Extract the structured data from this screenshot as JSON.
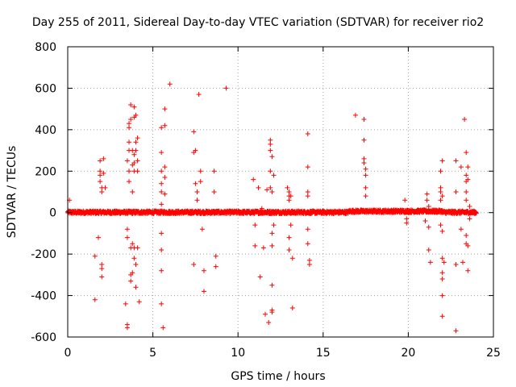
{
  "chart_data": {
    "type": "scatter",
    "title": "Day 255 of 2011, Sidereal Day-to-day VTEC variation (SDTVAR) for receiver rio2",
    "xlabel": "GPS time / hours",
    "ylabel": "SDTVAR / TECUs",
    "xlim": [
      0,
      25
    ],
    "ylim": [
      -600,
      800
    ],
    "xticks": [
      0,
      5,
      10,
      15,
      20,
      25
    ],
    "yticks": [
      -600,
      -400,
      -200,
      0,
      200,
      400,
      600,
      800
    ],
    "grid": true,
    "marker": "+",
    "color": "#ff0000",
    "baseline_band": {
      "description": "dense near-zero points across the full day",
      "x_range": [
        0,
        24
      ],
      "y_range": [
        -10,
        12
      ]
    },
    "points": [
      [
        0.1,
        60
      ],
      [
        1.6,
        -420
      ],
      [
        1.6,
        -210
      ],
      [
        1.8,
        -120
      ],
      [
        1.9,
        250
      ],
      [
        1.9,
        200
      ],
      [
        1.9,
        180
      ],
      [
        1.9,
        150
      ],
      [
        2.0,
        120
      ],
      [
        2.0,
        100
      ],
      [
        2.0,
        -250
      ],
      [
        2.0,
        -270
      ],
      [
        2.0,
        -310
      ],
      [
        2.1,
        260
      ],
      [
        2.1,
        190
      ],
      [
        2.2,
        120
      ],
      [
        3.4,
        -440
      ],
      [
        3.5,
        -540
      ],
      [
        3.5,
        -555
      ],
      [
        3.5,
        250
      ],
      [
        3.5,
        -80
      ],
      [
        3.5,
        -120
      ],
      [
        3.6,
        410
      ],
      [
        3.6,
        430
      ],
      [
        3.6,
        340
      ],
      [
        3.6,
        300
      ],
      [
        3.6,
        200
      ],
      [
        3.6,
        150
      ],
      [
        3.7,
        520
      ],
      [
        3.7,
        450
      ],
      [
        3.7,
        -170
      ],
      [
        3.7,
        -300
      ],
      [
        3.7,
        -330
      ],
      [
        3.8,
        300
      ],
      [
        3.8,
        230
      ],
      [
        3.8,
        100
      ],
      [
        3.8,
        -150
      ],
      [
        3.8,
        -290
      ],
      [
        3.9,
        510
      ],
      [
        3.9,
        460
      ],
      [
        3.9,
        280
      ],
      [
        3.9,
        240
      ],
      [
        3.9,
        200
      ],
      [
        3.9,
        -170
      ],
      [
        3.9,
        -220
      ],
      [
        4.0,
        470
      ],
      [
        4.0,
        340
      ],
      [
        4.0,
        300
      ],
      [
        4.0,
        -250
      ],
      [
        4.0,
        -360
      ],
      [
        4.1,
        360
      ],
      [
        4.1,
        250
      ],
      [
        4.1,
        200
      ],
      [
        4.1,
        -170
      ],
      [
        4.2,
        -430
      ],
      [
        5.5,
        410
      ],
      [
        5.5,
        290
      ],
      [
        5.5,
        200
      ],
      [
        5.5,
        140
      ],
      [
        5.5,
        100
      ],
      [
        5.5,
        40
      ],
      [
        5.5,
        -100
      ],
      [
        5.5,
        -180
      ],
      [
        5.5,
        -280
      ],
      [
        5.5,
        -440
      ],
      [
        5.6,
        -555
      ],
      [
        5.7,
        500
      ],
      [
        5.7,
        420
      ],
      [
        5.7,
        220
      ],
      [
        5.7,
        170
      ],
      [
        5.7,
        90
      ],
      [
        6.0,
        620
      ],
      [
        7.4,
        390
      ],
      [
        7.4,
        290
      ],
      [
        7.4,
        -250
      ],
      [
        7.5,
        300
      ],
      [
        7.5,
        140
      ],
      [
        7.6,
        100
      ],
      [
        7.6,
        60
      ],
      [
        7.7,
        570
      ],
      [
        7.8,
        200
      ],
      [
        7.8,
        150
      ],
      [
        7.9,
        -80
      ],
      [
        8.0,
        -280
      ],
      [
        8.0,
        -380
      ],
      [
        8.6,
        200
      ],
      [
        8.6,
        100
      ],
      [
        8.7,
        -210
      ],
      [
        8.7,
        -260
      ],
      [
        9.3,
        600
      ],
      [
        10.9,
        160
      ],
      [
        11.0,
        -60
      ],
      [
        11.0,
        -160
      ],
      [
        11.2,
        120
      ],
      [
        11.3,
        -310
      ],
      [
        11.4,
        20
      ],
      [
        11.5,
        -170
      ],
      [
        11.6,
        -490
      ],
      [
        11.7,
        110
      ],
      [
        11.9,
        350
      ],
      [
        11.9,
        330
      ],
      [
        11.9,
        300
      ],
      [
        11.9,
        200
      ],
      [
        11.9,
        120
      ],
      [
        12.0,
        270
      ],
      [
        12.0,
        100
      ],
      [
        12.0,
        -100
      ],
      [
        12.0,
        -160
      ],
      [
        12.0,
        -350
      ],
      [
        12.0,
        -470
      ],
      [
        12.0,
        -480
      ],
      [
        12.1,
        180
      ],
      [
        12.1,
        -60
      ],
      [
        11.8,
        -530
      ],
      [
        12.9,
        120
      ],
      [
        13.0,
        100
      ],
      [
        13.0,
        80
      ],
      [
        13.0,
        60
      ],
      [
        13.0,
        -120
      ],
      [
        13.0,
        -180
      ],
      [
        13.1,
        80
      ],
      [
        13.1,
        -60
      ],
      [
        13.2,
        -220
      ],
      [
        13.2,
        -460
      ],
      [
        14.1,
        380
      ],
      [
        14.1,
        220
      ],
      [
        14.1,
        100
      ],
      [
        14.1,
        80
      ],
      [
        14.1,
        -80
      ],
      [
        14.1,
        -150
      ],
      [
        14.2,
        -230
      ],
      [
        14.2,
        -250
      ],
      [
        16.9,
        470
      ],
      [
        17.4,
        450
      ],
      [
        17.4,
        350
      ],
      [
        17.4,
        260
      ],
      [
        17.4,
        240
      ],
      [
        17.5,
        210
      ],
      [
        17.5,
        180
      ],
      [
        17.5,
        120
      ],
      [
        17.5,
        80
      ],
      [
        19.8,
        60
      ],
      [
        19.9,
        -30
      ],
      [
        19.9,
        -50
      ],
      [
        21.0,
        -40
      ],
      [
        21.1,
        90
      ],
      [
        21.1,
        60
      ],
      [
        21.2,
        30
      ],
      [
        21.2,
        -70
      ],
      [
        21.2,
        -180
      ],
      [
        21.3,
        -240
      ],
      [
        21.9,
        200
      ],
      [
        21.9,
        120
      ],
      [
        21.9,
        100
      ],
      [
        21.9,
        60
      ],
      [
        21.9,
        -60
      ],
      [
        22.0,
        250
      ],
      [
        22.0,
        80
      ],
      [
        22.0,
        -90
      ],
      [
        22.0,
        -220
      ],
      [
        22.0,
        -290
      ],
      [
        22.0,
        -320
      ],
      [
        22.0,
        -400
      ],
      [
        22.0,
        -500
      ],
      [
        22.1,
        -240
      ],
      [
        22.8,
        250
      ],
      [
        22.8,
        100
      ],
      [
        22.8,
        -250
      ],
      [
        22.8,
        -570
      ],
      [
        23.1,
        220
      ],
      [
        23.1,
        -80
      ],
      [
        23.2,
        -240
      ],
      [
        23.3,
        450
      ],
      [
        23.4,
        290
      ],
      [
        23.4,
        180
      ],
      [
        23.4,
        150
      ],
      [
        23.4,
        100
      ],
      [
        23.4,
        60
      ],
      [
        23.4,
        -110
      ],
      [
        23.4,
        -150
      ],
      [
        23.5,
        220
      ],
      [
        23.5,
        160
      ],
      [
        23.5,
        -160
      ],
      [
        23.5,
        -280
      ],
      [
        23.6,
        30
      ],
      [
        23.6,
        -30
      ]
    ]
  }
}
